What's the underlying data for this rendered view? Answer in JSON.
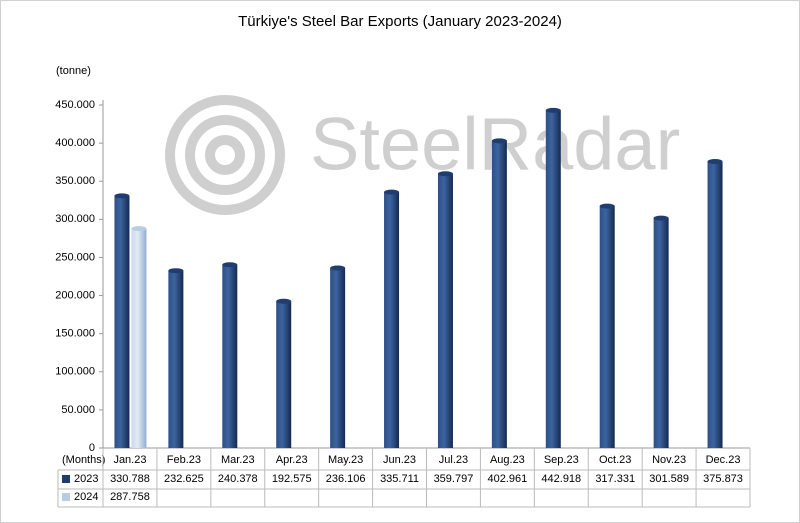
{
  "chart_data": {
    "type": "bar",
    "title": "Türkiye's Steel Bar Exports (January 2023-2024)",
    "y_label": "(tonne)",
    "x_label": "(Months)",
    "watermark": "SteelRadar",
    "categories": [
      "Jan.23",
      "Feb.23",
      "Mar.23",
      "Apr.23",
      "May.23",
      "Jun.23",
      "Jul.23",
      "Aug.23",
      "Sep.23",
      "Oct.23",
      "Nov.23",
      "Dec.23"
    ],
    "series": [
      {
        "name": "2023",
        "color": "#1f3d6e",
        "values": [
          330788,
          232625,
          240378,
          192575,
          236106,
          335711,
          359797,
          402961,
          442918,
          317331,
          301589,
          375873
        ],
        "value_labels": [
          "330.788",
          "232.625",
          "240.378",
          "192.575",
          "236.106",
          "335.711",
          "359.797",
          "402.961",
          "442.918",
          "317.331",
          "301.589",
          "375.873"
        ]
      },
      {
        "name": "2024",
        "color": "#b8cce4",
        "values": [
          287758,
          null,
          null,
          null,
          null,
          null,
          null,
          null,
          null,
          null,
          null,
          null
        ],
        "value_labels": [
          "287.758",
          null,
          null,
          null,
          null,
          null,
          null,
          null,
          null,
          null,
          null,
          null
        ]
      }
    ],
    "ylim": [
      0,
      450000
    ],
    "yticks": [
      0,
      {
        "value": 50000,
        "label": "50.000"
      },
      {
        "value": 100000,
        "label": "100.000"
      },
      {
        "value": 150000,
        "label": "150.000"
      },
      {
        "value": 200000,
        "label": "200.000"
      },
      {
        "value": 250000,
        "label": "250.000"
      },
      {
        "value": 300000,
        "label": "300.000"
      },
      {
        "value": 350000,
        "label": "350.000"
      },
      {
        "value": 400000,
        "label": "400.000"
      },
      {
        "value": 450000,
        "label": "450.000"
      }
    ]
  }
}
